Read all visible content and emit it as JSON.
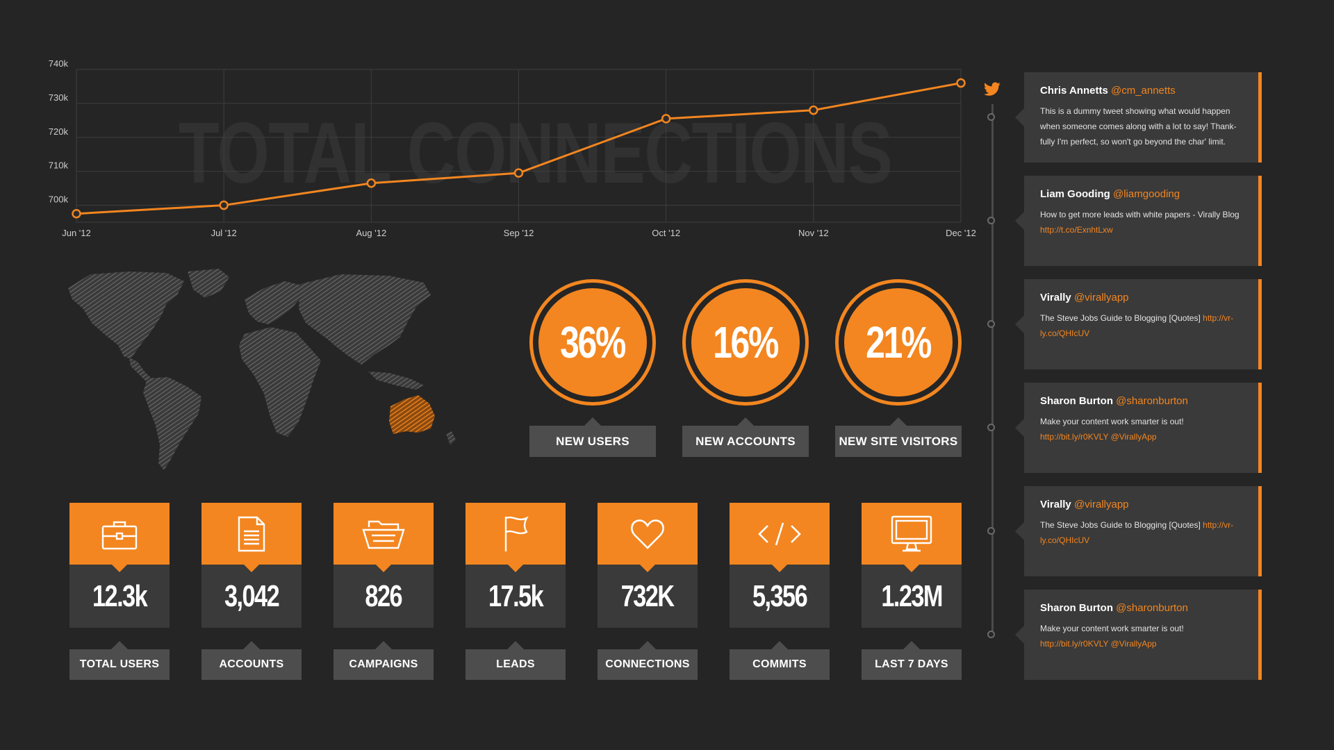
{
  "chart_data": {
    "type": "line",
    "title": "TOTAL CONNECTIONS",
    "categories": [
      "Jun '12",
      "Jul '12",
      "Aug '12",
      "Sep '12",
      "Oct '12",
      "Nov '12",
      "Dec '12"
    ],
    "values": [
      697.5,
      700,
      706.5,
      709.5,
      725.5,
      728,
      736
    ],
    "y_ticks": [
      "700k",
      "710k",
      "720k",
      "730k",
      "740k"
    ],
    "ylim": [
      695,
      740
    ],
    "grid": true,
    "line_color": "#f38620",
    "grid_color": "#3e3e3e"
  },
  "map": {
    "highlight_region": "Australia",
    "highlight_color": "#f38620",
    "base_color": "#5a5a5a"
  },
  "rings": [
    {
      "value": "36%",
      "label": "NEW USERS"
    },
    {
      "value": "16%",
      "label": "NEW ACCOUNTS"
    },
    {
      "value": "21%",
      "label": "NEW SITE VISITORS"
    }
  ],
  "stats": [
    {
      "icon": "briefcase-icon",
      "value": "12.3k",
      "label": "TOTAL USERS"
    },
    {
      "icon": "document-icon",
      "value": "3,042",
      "label": "ACCOUNTS"
    },
    {
      "icon": "basket-icon",
      "value": "826",
      "label": "CAMPAIGNS"
    },
    {
      "icon": "flag-icon",
      "value": "17.5k",
      "label": "LEADS"
    },
    {
      "icon": "heart-icon",
      "value": "732K",
      "label": "CONNECTIONS"
    },
    {
      "icon": "code-icon",
      "value": "5,356",
      "label": "COMMITS"
    },
    {
      "icon": "monitor-icon",
      "value": "1.23M",
      "label": "LAST 7 DAYS"
    }
  ],
  "tweets": [
    {
      "name": "Chris Annetts",
      "handle": "@cm_annetts",
      "text": "This is a dummy tweet showing what would happen when someone comes along with a lot to say! Thank-fully I'm perfect, so won't go beyond the char' limit.",
      "link": ""
    },
    {
      "name": "Liam Gooding",
      "handle": "@liamgooding",
      "text": "How to get more leads with white papers - Virally Blog",
      "link": "http://t.co/ExnhtLxw"
    },
    {
      "name": "Virally",
      "handle": "@virallyapp",
      "text": "The Steve Jobs Guide to Blogging [Quotes]",
      "link": "http://vr-ly.co/QHIcUV"
    },
    {
      "name": "Sharon Burton",
      "handle": "@sharonburton",
      "text": "Make your content work smarter is out!",
      "link": "http://bit.ly/r0KVLY @VirallyApp"
    },
    {
      "name": "Virally",
      "handle": "@virallyapp",
      "text": "The Steve Jobs Guide to Blogging [Quotes]",
      "link": "http://vr-ly.co/QHIcUV"
    },
    {
      "name": "Sharon Burton",
      "handle": "@sharonburton",
      "text": "Make your content work smarter is out!",
      "link": "http://bit.ly/r0KVLY @VirallyApp"
    }
  ],
  "colors": {
    "accent": "#f38620",
    "background": "#252525",
    "panel": "#3a3a3a",
    "label_bg": "#4d4d4d"
  }
}
